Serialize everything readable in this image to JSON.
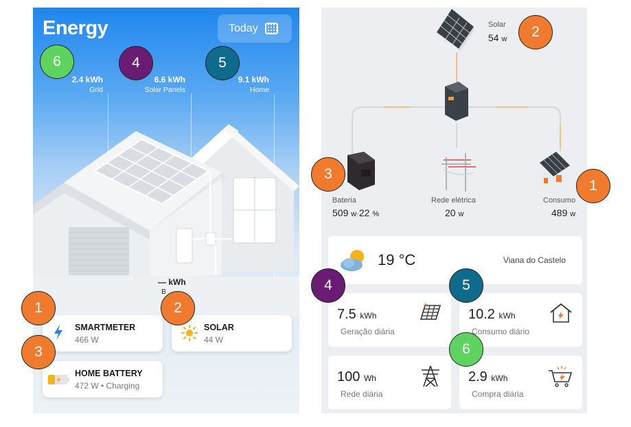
{
  "left": {
    "title": "Energy",
    "today_label": "Today",
    "stats": [
      {
        "value": "2.4 kWh",
        "label": "Grid"
      },
      {
        "value": "6.6 kWh",
        "label": "Solar Panels"
      },
      {
        "value": "9.1 kWh",
        "label": "Home"
      }
    ],
    "battery_value": "— kWh",
    "battery_label_partial": "B",
    "cards": {
      "smartmeter": {
        "title": "SMARTMETER",
        "sub": "466 W"
      },
      "solar": {
        "title": "SOLAR",
        "sub": "44 W"
      },
      "home_battery": {
        "title": "HOME BATTERY",
        "sub": "472 W • Charging"
      }
    }
  },
  "right": {
    "solar": {
      "label": "Solar",
      "value": "54",
      "unit": "w"
    },
    "battery": {
      "label": "Bateria",
      "value": "509",
      "unit": "w",
      "sep": "·",
      "pct": "22",
      "pct_unit": "%"
    },
    "grid": {
      "label": "Rede elétrica",
      "value": "20",
      "unit": "w"
    },
    "consumption": {
      "label": "Consumo",
      "value": "489",
      "unit": "w"
    },
    "weather": {
      "temp": "19 °C",
      "location": "Viana do Castelo"
    },
    "tiles": [
      {
        "value": "7.5",
        "unit": "kWh",
        "label": "Geração diária",
        "icon": "solar-panel-icon"
      },
      {
        "value": "10.2",
        "unit": "kWh",
        "label": "Consumo diário",
        "icon": "house-icon"
      },
      {
        "value": "100",
        "unit": "Wh",
        "label": "Rede diária",
        "icon": "pylon-icon"
      },
      {
        "value": "2.9",
        "unit": "kWh",
        "label": "Compra diária",
        "icon": "cart-icon"
      }
    ]
  },
  "badges": [
    "1",
    "2",
    "3",
    "4",
    "5",
    "6"
  ],
  "colors": {
    "orange": "#f07a2e",
    "purple": "#6a1b74",
    "teal": "#0e6b8c",
    "green": "#5fd35f"
  }
}
